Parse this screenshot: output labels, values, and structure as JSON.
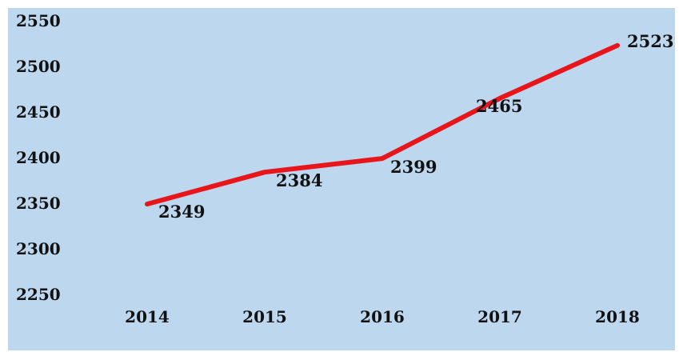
{
  "chart_data": {
    "type": "line",
    "title": "",
    "xlabel": "",
    "ylabel": "",
    "categories": [
      "2014",
      "2015",
      "2016",
      "2017",
      "2018"
    ],
    "series": [
      {
        "values": [
          2349,
          2384,
          2399,
          2465,
          2523
        ],
        "color": "#e8161b"
      }
    ],
    "data_labels": [
      "2349",
      "2384",
      "2399",
      "2465",
      "2523"
    ],
    "y_ticks": [
      "2250",
      "2300",
      "2350",
      "2400",
      "2450",
      "2500",
      "2550"
    ],
    "ylim": [
      2250,
      2550
    ],
    "grid": false,
    "legend": "none",
    "background_color": "#bdd7ee"
  }
}
